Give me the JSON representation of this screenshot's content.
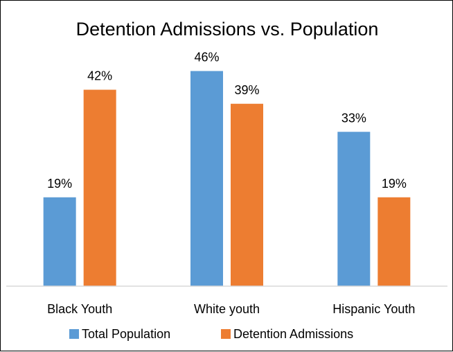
{
  "chart_data": {
    "type": "bar",
    "title": "Detention Admissions vs. Population",
    "xlabel": "",
    "ylabel": "",
    "categories": [
      "Black Youth",
      "White youth",
      "Hispanic Youth"
    ],
    "series": [
      {
        "name": "Total Population",
        "values": [
          19,
          46,
          33
        ],
        "labels": [
          "19%",
          "46%",
          "33%"
        ],
        "color": "#5B9BD5"
      },
      {
        "name": "Detention Admissions",
        "values": [
          42,
          39,
          19
        ],
        "labels": [
          "42%",
          "39%",
          "19%"
        ],
        "color": "#ED7D31"
      }
    ],
    "value_unit": "%",
    "ylim": [
      0,
      50
    ],
    "gridlines": false,
    "y_axis_shown": false,
    "legend_position": "bottom",
    "axis_line_color": "#D9D9D9"
  }
}
